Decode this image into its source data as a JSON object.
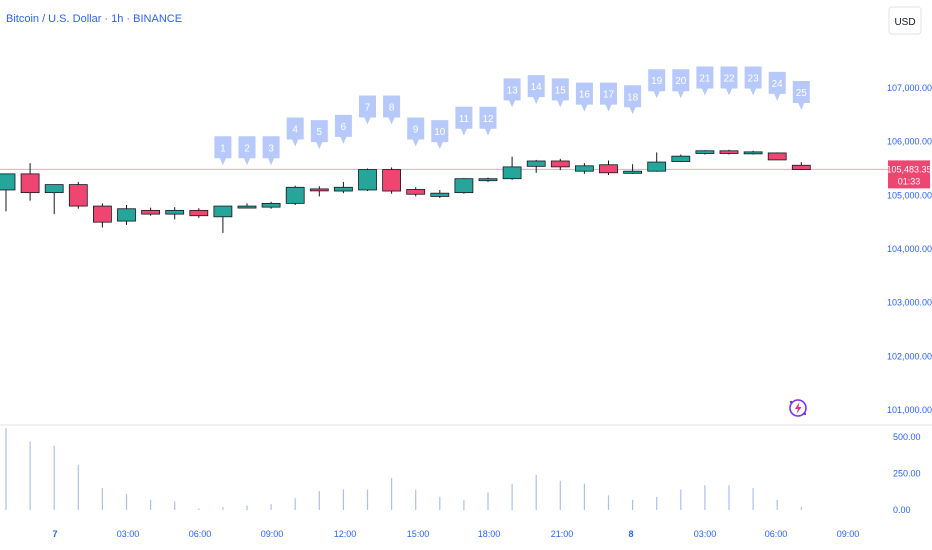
{
  "header": {
    "title": "Bitcoin / U.S. Dollar · 1h · BINANCE",
    "currency_button": "USD"
  },
  "colors": {
    "up": "#26a69a",
    "down": "#ef4571",
    "label_bg": "#b7c9fb",
    "axis_text": "#2962ff",
    "volume": "#a9bff5",
    "price_line": "#f7a3b6"
  },
  "chart_data": {
    "type": "candlestick",
    "title": "Bitcoin / U.S. Dollar · 1h · BINANCE",
    "currency": "USD",
    "x_ticks": [
      "7",
      "03:00",
      "06:00",
      "09:00",
      "12:00",
      "15:00",
      "18:00",
      "21:00",
      "8",
      "03:00",
      "06:00",
      "09:00"
    ],
    "bold_ticks": [
      "7",
      "8"
    ],
    "y_ticks": [
      "107,000.00",
      "106,000.00",
      "105,000.00",
      "104,000.00",
      "103,000.00",
      "102,000.00",
      "101,000.00"
    ],
    "y_tick_values": [
      107000,
      106000,
      105000,
      104000,
      103000,
      102000,
      101000
    ],
    "ylim": [
      100900,
      107500
    ],
    "volume_ticks": [
      "500.00",
      "250.00",
      "0.00"
    ],
    "volume_tick_values": [
      500,
      250,
      0
    ],
    "volume_ylim": [
      0,
      560
    ],
    "current_price": {
      "value": 105483.35,
      "label": "105,483.35",
      "countdown": "01:33"
    },
    "candles": [
      {
        "o": 105100,
        "h": 105400,
        "l": 104700,
        "c": 105400
      },
      {
        "o": 105400,
        "h": 105600,
        "l": 104900,
        "c": 105050
      },
      {
        "o": 105050,
        "h": 105200,
        "l": 104650,
        "c": 105200
      },
      {
        "o": 105200,
        "h": 105250,
        "l": 104750,
        "c": 104800
      },
      {
        "o": 104800,
        "h": 104850,
        "l": 104400,
        "c": 104500
      },
      {
        "o": 104520,
        "h": 104820,
        "l": 104450,
        "c": 104750
      },
      {
        "o": 104720,
        "h": 104770,
        "l": 104620,
        "c": 104650
      },
      {
        "o": 104650,
        "h": 104780,
        "l": 104550,
        "c": 104720
      },
      {
        "o": 104720,
        "h": 104760,
        "l": 104580,
        "c": 104620
      },
      {
        "o": 104600,
        "h": 104800,
        "l": 104300,
        "c": 104800
      },
      {
        "o": 104790,
        "h": 104850,
        "l": 104770,
        "c": 104800
      },
      {
        "o": 104780,
        "h": 104880,
        "l": 104750,
        "c": 104850
      },
      {
        "o": 104850,
        "h": 105180,
        "l": 104820,
        "c": 105150
      },
      {
        "o": 105120,
        "h": 105170,
        "l": 104980,
        "c": 105100
      },
      {
        "o": 105080,
        "h": 105250,
        "l": 105040,
        "c": 105150
      },
      {
        "o": 105100,
        "h": 105500,
        "l": 105080,
        "c": 105480
      },
      {
        "o": 105480,
        "h": 105520,
        "l": 105030,
        "c": 105080
      },
      {
        "o": 105110,
        "h": 105150,
        "l": 104980,
        "c": 105020
      },
      {
        "o": 104980,
        "h": 105100,
        "l": 104950,
        "c": 105040
      },
      {
        "o": 105050,
        "h": 105320,
        "l": 105030,
        "c": 105310
      },
      {
        "o": 105290,
        "h": 105330,
        "l": 105250,
        "c": 105310
      },
      {
        "o": 105310,
        "h": 105720,
        "l": 105290,
        "c": 105530
      },
      {
        "o": 105540,
        "h": 105660,
        "l": 105420,
        "c": 105640
      },
      {
        "o": 105640,
        "h": 105680,
        "l": 105470,
        "c": 105530
      },
      {
        "o": 105450,
        "h": 105600,
        "l": 105400,
        "c": 105550
      },
      {
        "o": 105570,
        "h": 105650,
        "l": 105380,
        "c": 105420
      },
      {
        "o": 105410,
        "h": 105580,
        "l": 105400,
        "c": 105450
      },
      {
        "o": 105450,
        "h": 105800,
        "l": 105440,
        "c": 105620
      },
      {
        "o": 105630,
        "h": 105760,
        "l": 105620,
        "c": 105730
      },
      {
        "o": 105780,
        "h": 105840,
        "l": 105760,
        "c": 105830
      },
      {
        "o": 105830,
        "h": 105850,
        "l": 105760,
        "c": 105780
      },
      {
        "o": 105780,
        "h": 105830,
        "l": 105760,
        "c": 105810
      },
      {
        "o": 105790,
        "h": 105800,
        "l": 105660,
        "c": 105660
      },
      {
        "o": 105560,
        "h": 105620,
        "l": 105470,
        "c": 105480
      }
    ],
    "volumes": [
      560,
      470,
      440,
      310,
      150,
      110,
      70,
      60,
      10,
      20,
      30,
      40,
      80,
      130,
      140,
      140,
      220,
      140,
      90,
      70,
      120,
      180,
      240,
      200,
      180,
      100,
      70,
      90,
      140,
      170,
      170,
      150,
      70,
      20
    ],
    "signal_labels": [
      {
        "text": "1",
        "bar": 9,
        "level": 105560
      },
      {
        "text": "2",
        "bar": 10,
        "level": 105560
      },
      {
        "text": "3",
        "bar": 11,
        "level": 105560
      },
      {
        "text": "4",
        "bar": 12,
        "level": 105910
      },
      {
        "text": "5",
        "bar": 13,
        "level": 105860
      },
      {
        "text": "6",
        "bar": 14,
        "level": 105960
      },
      {
        "text": "7",
        "bar": 15,
        "level": 106320
      },
      {
        "text": "8",
        "bar": 16,
        "level": 106320
      },
      {
        "text": "9",
        "bar": 17,
        "level": 105910
      },
      {
        "text": "10",
        "bar": 18,
        "level": 105860
      },
      {
        "text": "11",
        "bar": 19,
        "level": 106110
      },
      {
        "text": "12",
        "bar": 20,
        "level": 106110
      },
      {
        "text": "13",
        "bar": 21,
        "level": 106640
      },
      {
        "text": "14",
        "bar": 22,
        "level": 106700
      },
      {
        "text": "15",
        "bar": 23,
        "level": 106640
      },
      {
        "text": "16",
        "bar": 24,
        "level": 106560
      },
      {
        "text": "17",
        "bar": 25,
        "level": 106560
      },
      {
        "text": "18",
        "bar": 26,
        "level": 106510
      },
      {
        "text": "19",
        "bar": 27,
        "level": 106810
      },
      {
        "text": "20",
        "bar": 28,
        "level": 106810
      },
      {
        "text": "21",
        "bar": 29,
        "level": 106860
      },
      {
        "text": "22",
        "bar": 30,
        "level": 106860
      },
      {
        "text": "23",
        "bar": 31,
        "level": 106860
      },
      {
        "text": "24",
        "bar": 32,
        "level": 106760
      },
      {
        "text": "25",
        "bar": 33,
        "level": 106590
      }
    ]
  }
}
